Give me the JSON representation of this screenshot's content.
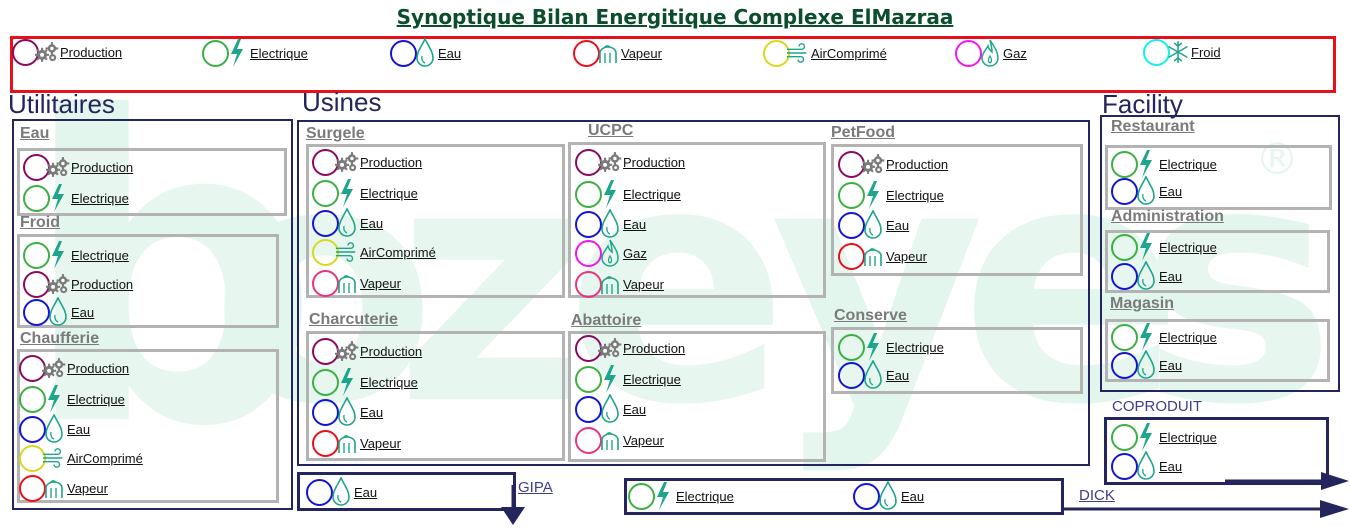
{
  "title": "Synoptique Bilan Energitique Complexe ElMazraa",
  "watermark": {
    "letters": [
      "b",
      "o",
      "z",
      "e",
      "y",
      "e",
      "s"
    ],
    "registered": "®"
  },
  "colors": {
    "production": "#8b0a5f",
    "electrique": "#3cb043",
    "eau": "#1515d1",
    "vapeur": "#e8111b",
    "aircomprime": "#d8d81f",
    "gaz": "#ee18ee",
    "froid": "#14f0f0",
    "vapeur_alt": "#e8357f",
    "frame": "#25255e",
    "box": "#b3b3b3",
    "legend_border": "#e8111b",
    "watermark": "#e3f6ee",
    "icon": "#1ea58a"
  },
  "legend": [
    {
      "label": "Production",
      "ring": "production",
      "icon": "gears-icon"
    },
    {
      "label": "Electrique",
      "ring": "electrique",
      "icon": "lightning-icon"
    },
    {
      "label": "Eau",
      "ring": "eau",
      "icon": "water-drop-icon"
    },
    {
      "label": "Vapeur",
      "ring": "vapeur",
      "icon": "steam-icon"
    },
    {
      "label": "AirComprimé",
      "ring": "aircomprime",
      "icon": "air-wind-icon"
    },
    {
      "label": "Gaz",
      "ring": "gaz",
      "icon": "gas-flame-icon"
    },
    {
      "label": "Froid",
      "ring": "froid",
      "icon": "snowflake-icon"
    }
  ],
  "sections": {
    "utilitaires": "Utilitaires",
    "usines": "Usines",
    "facility": "Facility"
  },
  "utilitaires": {
    "eau": {
      "name": "Eau",
      "items": [
        "Production",
        "Electrique"
      ]
    },
    "froid": {
      "name": "Froid",
      "items": [
        "Electrique",
        "Production",
        "Eau"
      ]
    },
    "chaufferie": {
      "name": "Chaufferie",
      "items": [
        "Production",
        "Electrique",
        "Eau",
        "AirComprimé",
        "Vapeur"
      ]
    }
  },
  "usines": {
    "surgele": {
      "name": "Surgele",
      "items": [
        "Production",
        "Electrique",
        "Eau",
        "AirComprimé",
        "Vapeur"
      ]
    },
    "ucpc": {
      "name": "UCPC",
      "items": [
        "Production",
        "Electrique",
        "Eau",
        "Gaz",
        "Vapeur"
      ]
    },
    "petfood": {
      "name": "PetFood",
      "items": [
        "Production",
        "Electrique",
        "Eau",
        "Vapeur"
      ]
    },
    "charcuterie": {
      "name": "Charcuterie",
      "items": [
        "Production",
        "Electrique",
        "Eau",
        "Vapeur"
      ]
    },
    "abattoire": {
      "name": "Abattoire",
      "items": [
        "Production",
        "Electrique",
        "Eau",
        "Vapeur"
      ]
    },
    "conserve": {
      "name": "Conserve",
      "items": [
        "Electrique",
        "Eau"
      ]
    }
  },
  "facility": {
    "restaurant": {
      "name": "Restaurant",
      "items": [
        "Electrique",
        "Eau"
      ]
    },
    "administration": {
      "name": "Administration",
      "items": [
        "Electrique",
        "Eau"
      ]
    },
    "magasin": {
      "name": "Magasin",
      "items": [
        "Electrique",
        "Eau"
      ]
    }
  },
  "coproduit": {
    "name": "COPRODUIT",
    "items": [
      "Electrique",
      "Eau"
    ]
  },
  "gipa": {
    "name": "GIPA",
    "items": [
      "Eau"
    ]
  },
  "dick": {
    "name": "DICK",
    "items": [
      "Electrique",
      "Eau"
    ]
  }
}
